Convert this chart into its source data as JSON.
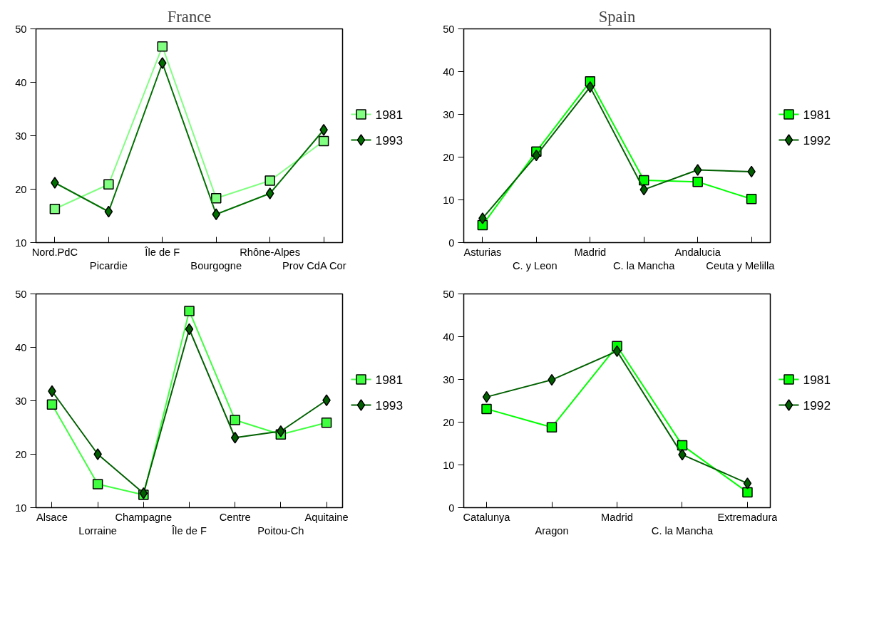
{
  "chart_data": [
    {
      "type": "line",
      "title": "France",
      "categories": [
        "Nord.PdC",
        "Picardie",
        "Île de F",
        "Bourgogne",
        "Rhône-Alpes",
        "Prov  CdA Cor"
      ],
      "ylim": [
        10,
        50
      ],
      "yticks": [
        10,
        20,
        30,
        40,
        50
      ],
      "grid": false,
      "legend": "right",
      "series": [
        {
          "name": "1981",
          "color": "#80ff80",
          "marker": "square",
          "values": [
            16.3,
            20.9,
            46.7,
            18.3,
            21.6,
            29.0
          ]
        },
        {
          "name": "1993",
          "color": "#007000",
          "marker": "diamond",
          "values": [
            21.2,
            15.8,
            43.6,
            15.3,
            19.2,
            31.1
          ]
        }
      ]
    },
    {
      "type": "line",
      "title": "Spain",
      "categories": [
        "Asturias",
        "C. y  Leon",
        "Madrid",
        "C. la Mancha",
        "Andalucia",
        "Ceuta y  Melilla"
      ],
      "ylim": [
        0,
        50
      ],
      "yticks": [
        0,
        10,
        20,
        30,
        40,
        50
      ],
      "grid": false,
      "legend": "right",
      "series": [
        {
          "name": "1981",
          "color": "#00ff00",
          "marker": "square",
          "values": [
            4.1,
            21.3,
            37.7,
            14.6,
            14.2,
            10.2
          ]
        },
        {
          "name": "1992",
          "color": "#006000",
          "marker": "diamond",
          "values": [
            5.7,
            20.4,
            36.4,
            12.4,
            17.0,
            16.6
          ]
        }
      ]
    },
    {
      "type": "line",
      "categories": [
        "Alsace",
        "Lorraine",
        "Champagne",
        "Île de F",
        "Centre",
        "Poitou-Ch",
        "Aquitaine"
      ],
      "ylim": [
        10,
        50
      ],
      "yticks": [
        10,
        20,
        30,
        40,
        50
      ],
      "grid": false,
      "legend": "right",
      "series": [
        {
          "name": "1981",
          "color": "#40ff40",
          "marker": "square",
          "values": [
            29.3,
            14.4,
            12.4,
            46.8,
            26.4,
            23.7,
            25.9
          ]
        },
        {
          "name": "1993",
          "color": "#006000",
          "marker": "diamond",
          "values": [
            31.8,
            20.0,
            12.7,
            43.4,
            23.1,
            24.3,
            30.1
          ]
        }
      ]
    },
    {
      "type": "line",
      "categories": [
        "Catalunya",
        "Aragon",
        "Madrid",
        "C. la Mancha",
        "Extremadura"
      ],
      "ylim": [
        0,
        50
      ],
      "yticks": [
        0,
        10,
        20,
        30,
        40,
        50
      ],
      "grid": false,
      "legend": "right",
      "series": [
        {
          "name": "1981",
          "color": "#00ff00",
          "marker": "square",
          "values": [
            23.1,
            18.8,
            37.8,
            14.6,
            3.6
          ]
        },
        {
          "name": "1992",
          "color": "#006000",
          "marker": "diamond",
          "values": [
            25.9,
            29.9,
            36.6,
            12.4,
            5.7
          ]
        }
      ]
    }
  ]
}
